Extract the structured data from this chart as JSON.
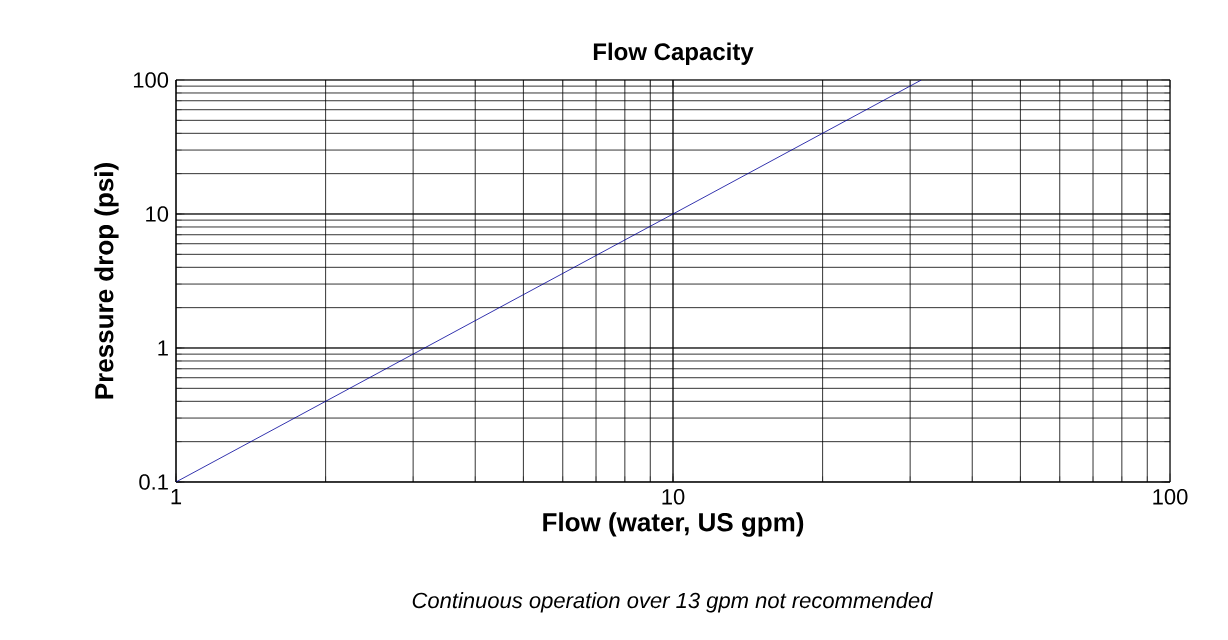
{
  "chart_data": {
    "type": "line",
    "title": "Flow Capacity",
    "xlabel": "Flow (water, US gpm)",
    "ylabel": "Pressure drop (psi)",
    "annotations": [
      "Continuous operation over 13 gpm not recommended"
    ],
    "x": [
      1,
      3,
      10,
      31.6
    ],
    "series": [
      {
        "color": "#000099",
        "values": [
          0.1,
          0.9,
          10,
          100
        ]
      }
    ],
    "xlim": [
      1,
      100
    ],
    "ylim": [
      0.1,
      100
    ],
    "xticks": [
      1,
      10,
      100
    ],
    "yticks": [
      0.1,
      1,
      10,
      100
    ],
    "log": "xy",
    "grid": true,
    "marker": "none",
    "line_style": "solid"
  }
}
